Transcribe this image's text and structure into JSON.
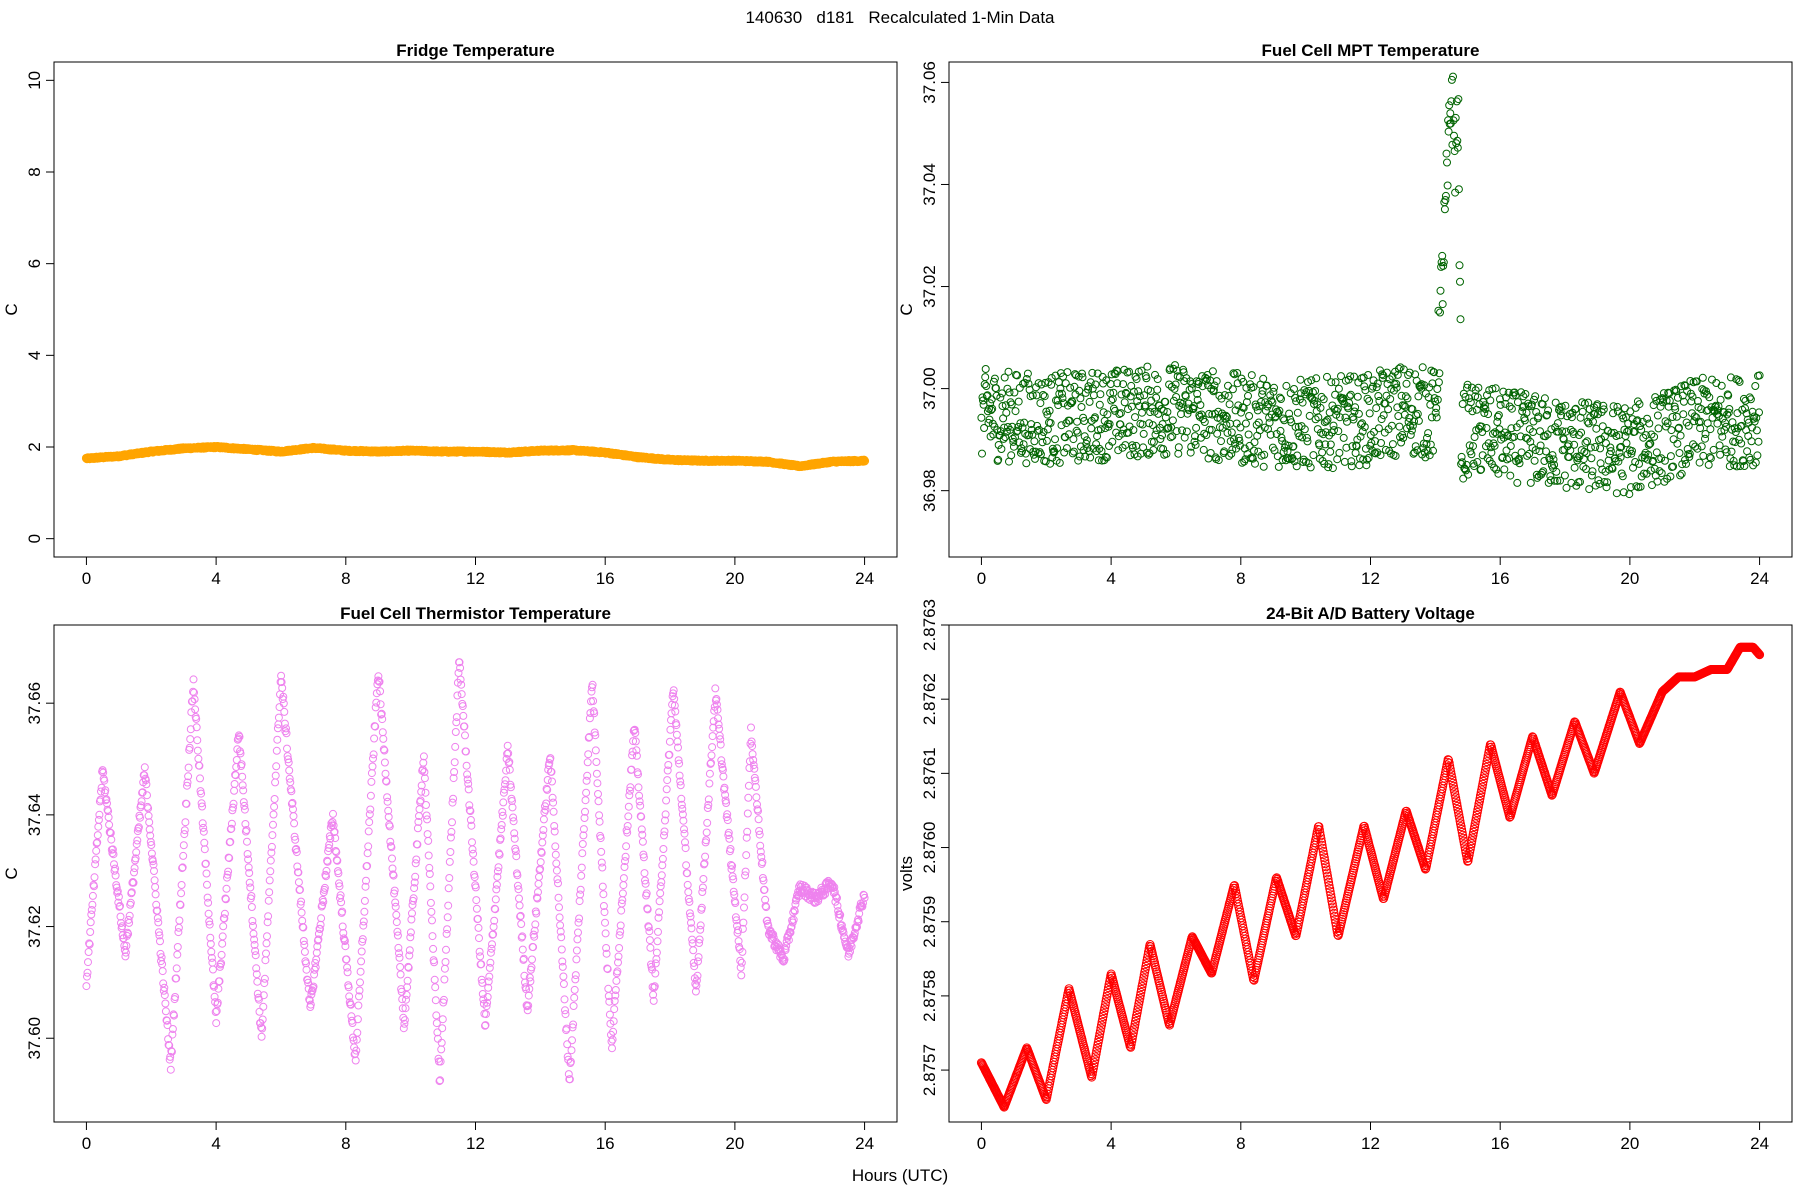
{
  "page_title": "140630   d181   Recalculated 1-Min Data",
  "x_common_label": "Hours (UTC)",
  "chart_data": [
    {
      "id": "fridge",
      "type": "scatter",
      "title": "Fridge Temperature",
      "ylabel": "C",
      "color": "#FFA500",
      "xlim": [
        -1,
        25
      ],
      "ylim": [
        -0.4,
        10.4
      ],
      "xticks": [
        "0",
        "4",
        "8",
        "12",
        "16",
        "20",
        "24"
      ],
      "yticks": [
        "0",
        "2",
        "4",
        "6",
        "8",
        "10"
      ],
      "series": [
        {
          "name": "Fridge Temperature",
          "x": [
            0,
            1,
            2,
            3,
            4,
            5,
            6,
            7,
            8,
            9,
            10,
            11,
            12,
            13,
            14,
            15,
            16,
            17,
            18,
            19,
            20,
            21,
            22,
            23,
            24
          ],
          "y": [
            1.75,
            1.8,
            1.9,
            1.97,
            2.0,
            1.95,
            1.9,
            1.98,
            1.92,
            1.9,
            1.92,
            1.9,
            1.9,
            1.88,
            1.92,
            1.93,
            1.88,
            1.78,
            1.72,
            1.7,
            1.7,
            1.68,
            1.58,
            1.68,
            1.7
          ]
        }
      ]
    },
    {
      "id": "mpt",
      "type": "scatter",
      "title": "Fuel Cell MPT Temperature",
      "ylabel": "C",
      "color": "#006400",
      "xlim": [
        -1,
        25
      ],
      "ylim": [
        36.967,
        37.064
      ],
      "xticks": [
        "0",
        "4",
        "8",
        "12",
        "16",
        "20",
        "24"
      ],
      "yticks": [
        "36.98",
        "37.00",
        "37.02",
        "37.04",
        "37.06"
      ],
      "series": [
        {
          "name": "Fuel Cell MPT Temperature",
          "x": [
            0,
            2,
            4,
            6,
            8,
            10,
            12,
            13,
            14,
            14.4,
            14.5,
            14.6,
            14.7,
            14.8,
            15,
            16,
            18,
            20,
            22,
            24
          ],
          "y": [
            36.995,
            36.994,
            36.995,
            36.996,
            36.994,
            36.993,
            36.994,
            36.996,
            36.995,
            37.045,
            37.06,
            37.045,
            37.055,
            36.99,
            36.992,
            36.991,
            36.989,
            36.988,
            36.993,
            36.994
          ]
        }
      ]
    },
    {
      "id": "thermistor",
      "type": "scatter",
      "title": "Fuel Cell Thermistor Temperature",
      "ylabel": "C",
      "color": "#EE82EE",
      "xlim": [
        -1,
        25
      ],
      "ylim": [
        37.585,
        37.674
      ],
      "xticks": [
        "0",
        "4",
        "8",
        "12",
        "16",
        "20",
        "24"
      ],
      "yticks": [
        "37.60",
        "37.62",
        "37.64",
        "37.66"
      ],
      "series": [
        {
          "name": "Fuel Cell Thermistor Temperature",
          "x": [
            0,
            0.5,
            1.2,
            1.8,
            2.6,
            3.3,
            4.0,
            4.7,
            5.4,
            6.0,
            6.9,
            7.6,
            8.3,
            9.0,
            9.8,
            10.4,
            10.9,
            11.5,
            12.3,
            13.0,
            13.6,
            14.3,
            14.9,
            15.6,
            16.2,
            16.9,
            17.5,
            18.1,
            18.8,
            19.4,
            20.2,
            20.5,
            21.0,
            21.5,
            22.0,
            22.5,
            23.0,
            23.5,
            24.0
          ],
          "y": [
            37.61,
            37.648,
            37.615,
            37.648,
            37.595,
            37.664,
            37.603,
            37.655,
            37.6,
            37.665,
            37.605,
            37.64,
            37.596,
            37.666,
            37.602,
            37.651,
            37.592,
            37.668,
            37.602,
            37.652,
            37.605,
            37.651,
            37.592,
            37.664,
            37.598,
            37.656,
            37.607,
            37.663,
            37.608,
            37.662,
            37.612,
            37.655,
            37.62,
            37.614,
            37.627,
            37.625,
            37.628,
            37.615,
            37.626
          ]
        }
      ]
    },
    {
      "id": "battery",
      "type": "scatter",
      "title": "24-Bit A/D Battery Voltage",
      "ylabel": "volts",
      "color": "#FF0000",
      "xlim": [
        -1,
        25
      ],
      "ylim": [
        2.87563,
        2.8763
      ],
      "xticks": [
        "0",
        "4",
        "8",
        "12",
        "16",
        "20",
        "24"
      ],
      "yticks": [
        "2.8757",
        "2.8758",
        "2.8759",
        "2.8760",
        "2.8761",
        "2.8762",
        "2.8763"
      ],
      "series": [
        {
          "name": "24-Bit A/D Battery Voltage",
          "x": [
            0,
            0.7,
            1.4,
            2.0,
            2.7,
            3.4,
            4.0,
            4.6,
            5.2,
            5.8,
            6.5,
            7.1,
            7.8,
            8.4,
            9.1,
            9.7,
            10.4,
            11.0,
            11.8,
            12.4,
            13.1,
            13.7,
            14.4,
            15.0,
            15.7,
            16.3,
            17.0,
            17.6,
            18.3,
            18.9,
            19.7,
            20.3,
            21.0,
            21.5,
            22.0,
            22.5,
            23.0,
            23.4,
            23.8,
            24.0
          ],
          "y": [
            2.87571,
            2.87565,
            2.87573,
            2.87566,
            2.87581,
            2.87569,
            2.87583,
            2.87573,
            2.87587,
            2.87576,
            2.87588,
            2.87583,
            2.87595,
            2.87582,
            2.87596,
            2.87588,
            2.87603,
            2.87588,
            2.87603,
            2.87593,
            2.87605,
            2.87597,
            2.87612,
            2.87598,
            2.87614,
            2.87604,
            2.87615,
            2.87607,
            2.87617,
            2.8761,
            2.87621,
            2.87614,
            2.87621,
            2.87623,
            2.87623,
            2.87624,
            2.87624,
            2.87627,
            2.87627,
            2.87626
          ]
        }
      ]
    }
  ]
}
